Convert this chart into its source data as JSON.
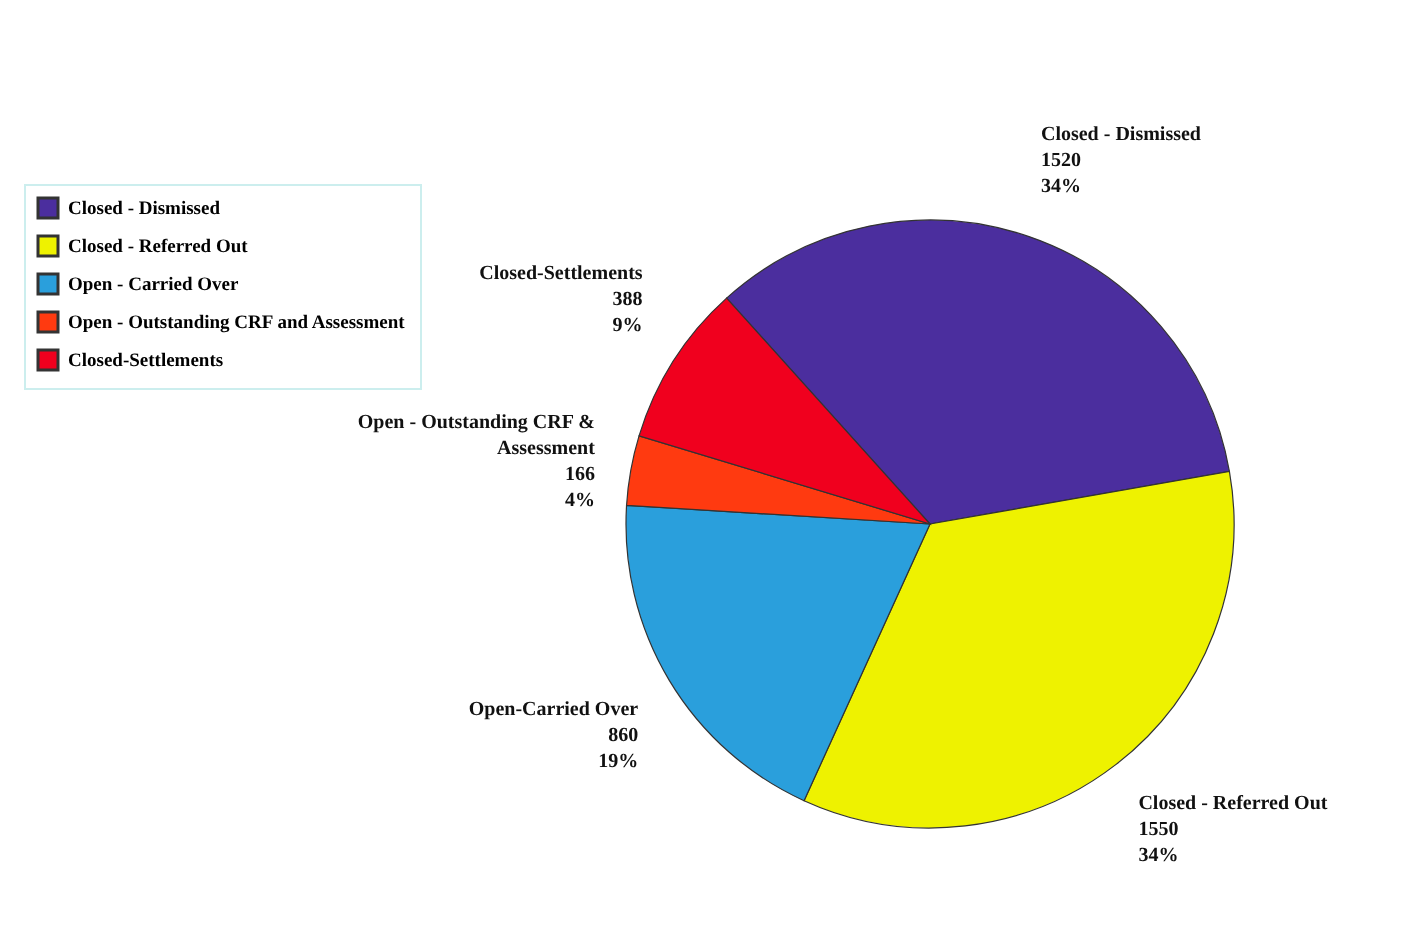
{
  "chart_data": {
    "type": "pie",
    "categories": [
      "Closed - Dismissed",
      "Closed - Referred Out",
      "Open - Carried Over",
      "Open - Outstanding CRF and Assessment",
      "Closed-Settlements"
    ],
    "values": [
      1520,
      1550,
      860,
      166,
      388
    ],
    "colors": [
      "#4b2e9e",
      "#eef200",
      "#2a9fdc",
      "#ff3a10",
      "#f0001e"
    ],
    "value_labels": [
      "1520\n34%",
      "1550\n34%",
      "860\n19%",
      "166\n4%",
      "388\n9%"
    ],
    "annotations": [
      "Closed - Dismissed",
      "Closed - Referred Out",
      "Open-Carried Over",
      "Open - Outstanding CRF &\nAssessment",
      "Closed-Settlements"
    ],
    "legend": "left"
  }
}
